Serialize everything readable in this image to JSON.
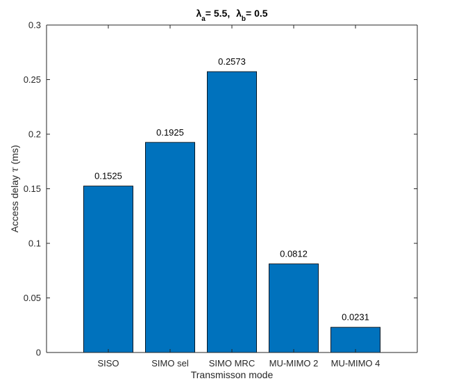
{
  "chart_data": {
    "type": "bar",
    "title_parts": {
      "sym_a": "λ",
      "sub_a": "a",
      "eq_a": "= 5.5,",
      "sym_b": "λ",
      "sub_b": "b",
      "eq_b": "= 0.5"
    },
    "xlabel": "Transmisson mode",
    "ylabel_prefix": "Access delay ",
    "ylabel_symbol": "τ",
    "ylabel_suffix": " (ms)",
    "categories": [
      "SISO",
      "SIMO sel",
      "SIMO MRC",
      "MU-MIMO 2",
      "MU-MIMO 4"
    ],
    "values": [
      0.1525,
      0.1925,
      0.2573,
      0.0812,
      0.0231
    ],
    "data_labels": [
      "0.1525",
      "0.1925",
      "0.2573",
      "0.0812",
      "0.0231"
    ],
    "ylim": [
      0,
      0.3
    ],
    "yticks": [
      0,
      0.05,
      0.1,
      0.15,
      0.2,
      0.25,
      0.3
    ],
    "ytick_labels": [
      "0",
      "0.05",
      "0.1",
      "0.15",
      "0.2",
      "0.25",
      "0.3"
    ],
    "x_category_range": [
      0,
      5
    ],
    "grid": false,
    "bar_color": "#0072BD",
    "bar_edge_color": "#000000",
    "box": true
  }
}
